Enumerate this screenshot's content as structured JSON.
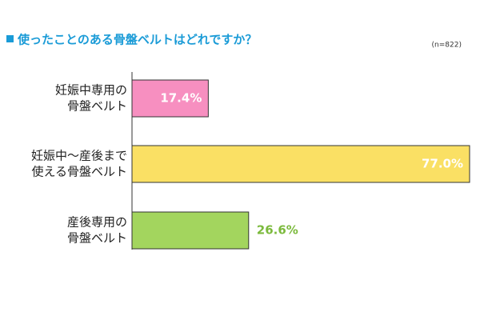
{
  "chart_data": {
    "type": "hbar",
    "title": "使ったことのある骨盤ベルトはどれですか？",
    "note": "(n=822)",
    "categories": [
      [
        "妊娠中専用の",
        "骨盤ベルト"
      ],
      [
        "妊娠中〜産後まで",
        "使える骨盤ベルト"
      ],
      [
        "産後専用の",
        "骨盤ベルト"
      ]
    ],
    "values": [
      17.4,
      77.0,
      26.6
    ],
    "value_labels": [
      "17.4%",
      "77.0%",
      "26.6%"
    ],
    "colors": [
      "#f78fc0",
      "#fae064",
      "#a3d55e"
    ],
    "label_position": [
      "inside",
      "inside",
      "outside"
    ],
    "xlim": [
      0,
      77
    ]
  }
}
